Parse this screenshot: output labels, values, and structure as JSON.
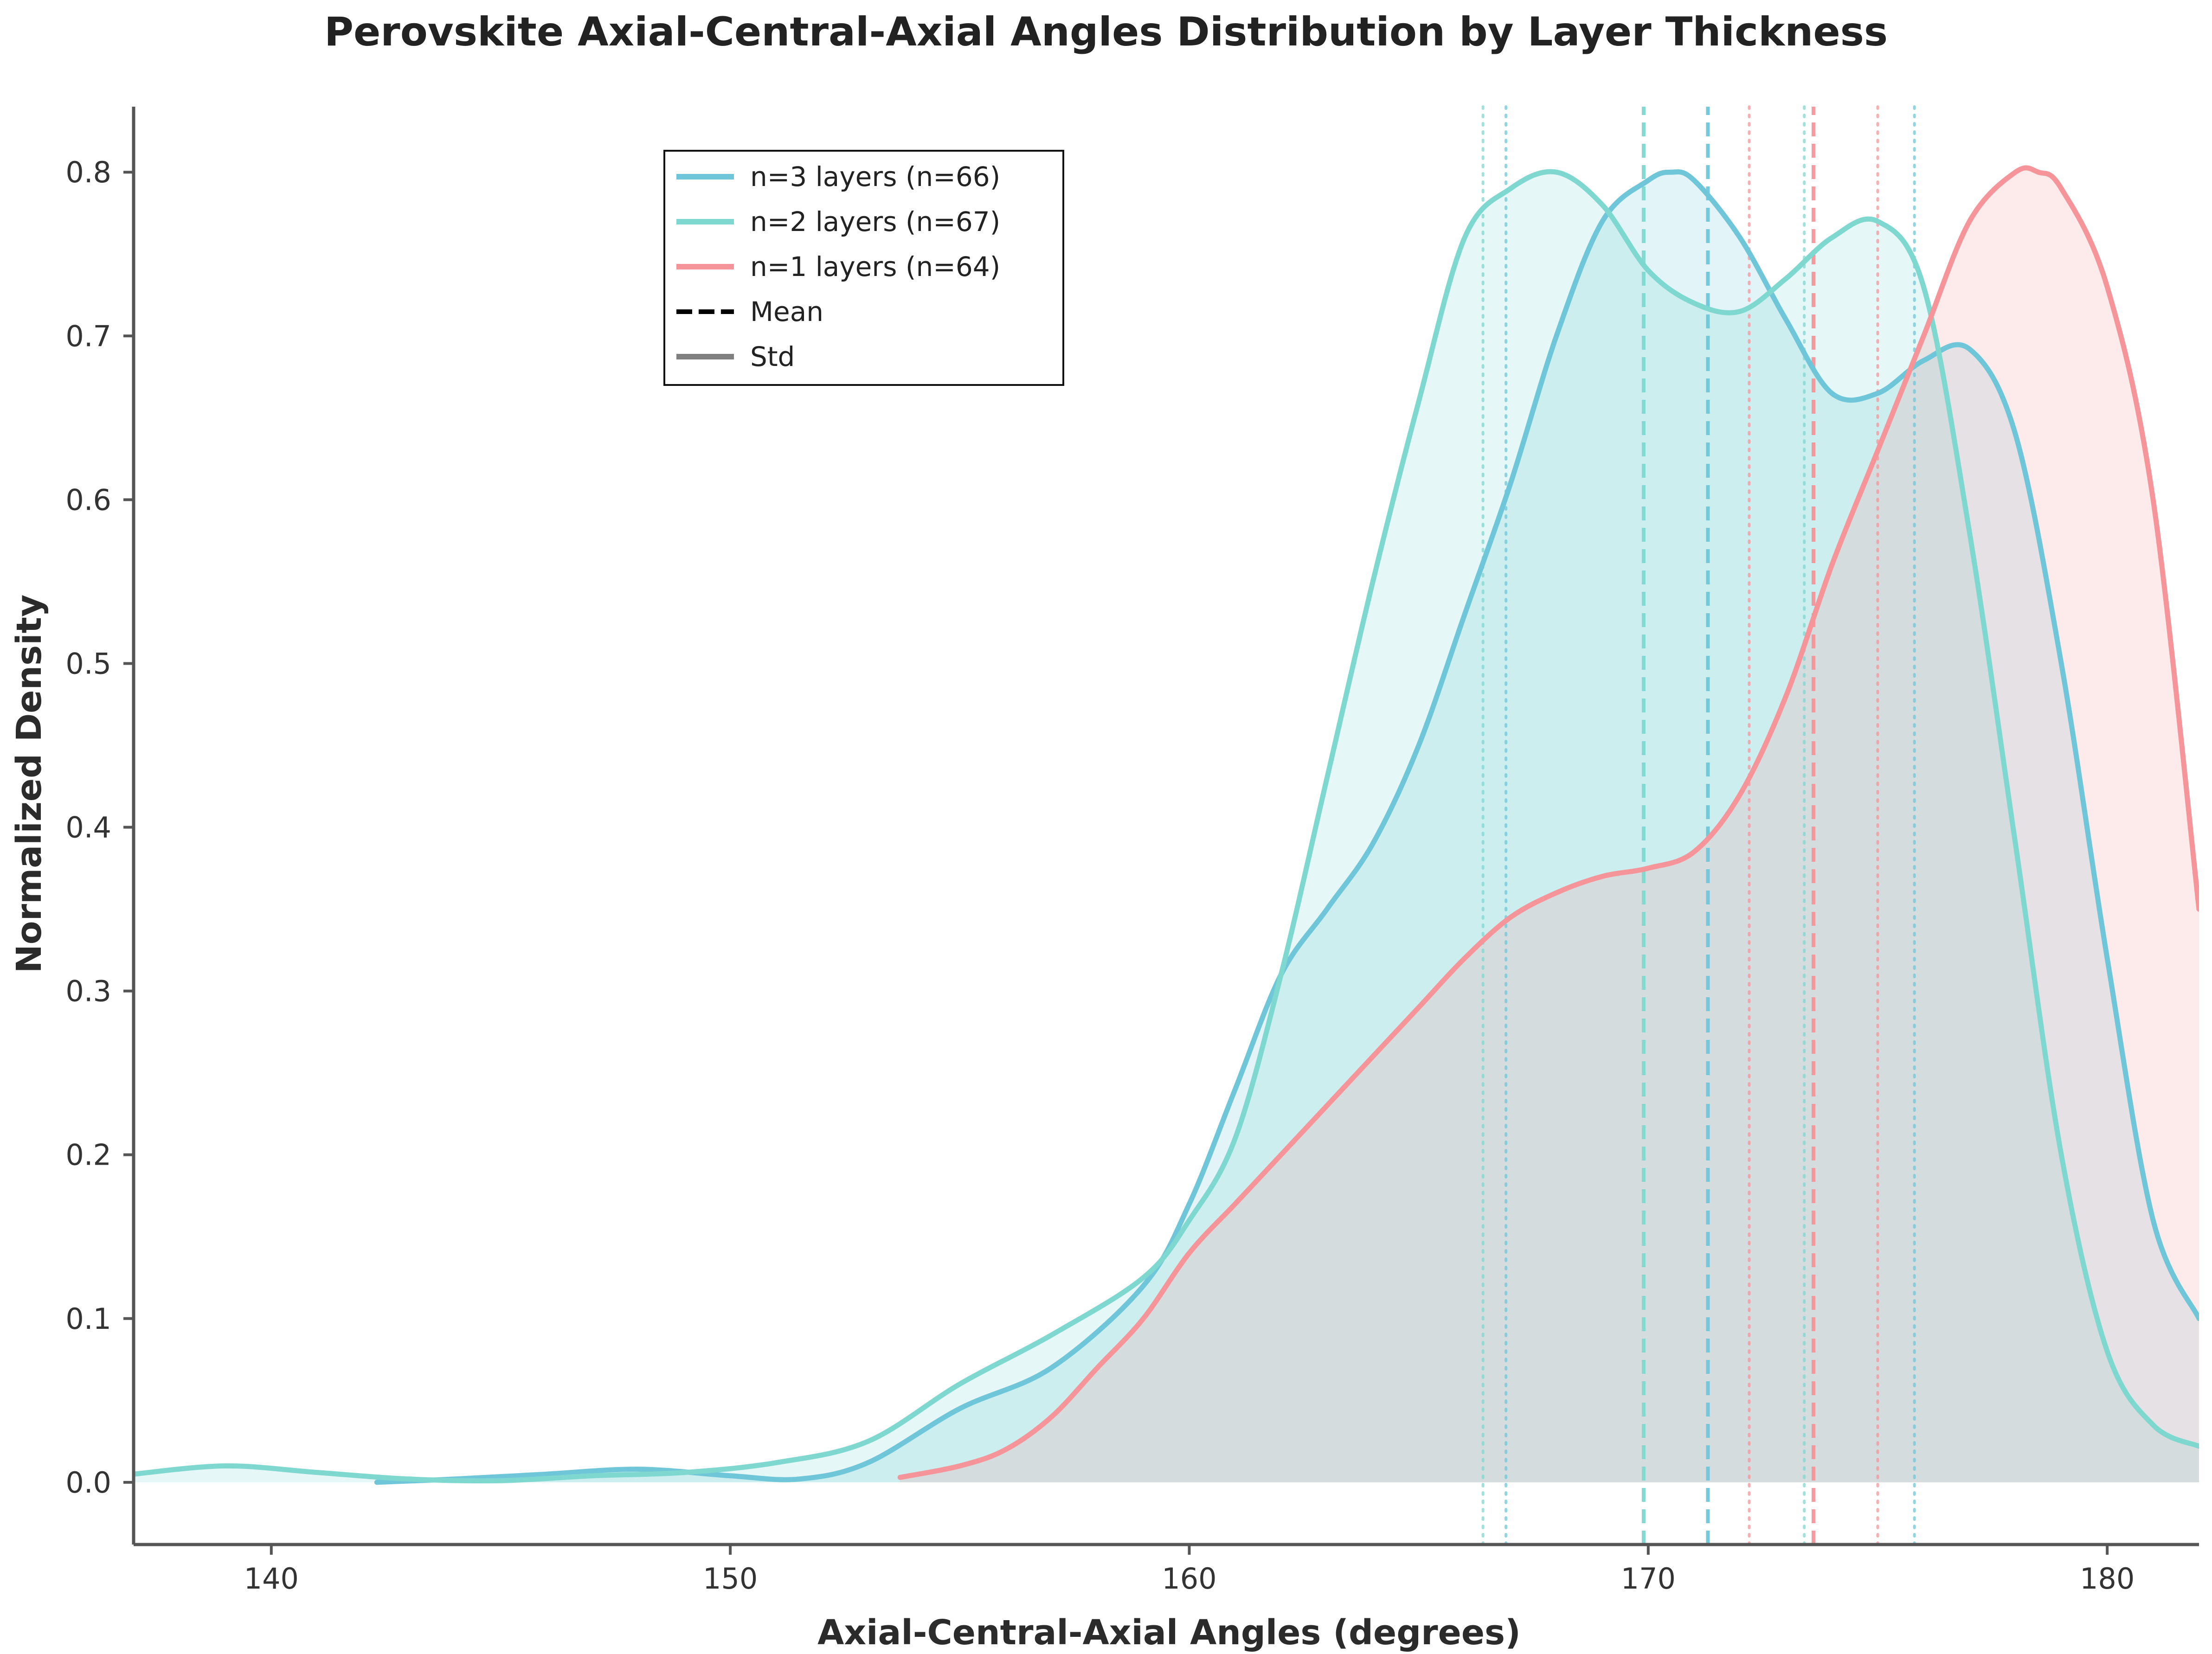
{
  "chart_data": {
    "type": "area",
    "title": "Perovskite Axial-Central-Axial Angles Distribution by Layer Thickness",
    "xlabel": "Axial-Central-Axial Angles (degrees)",
    "ylabel": "Normalized Density",
    "xlim": [
      137,
      182
    ],
    "ylim": [
      -0.038,
      0.84
    ],
    "xticks": [
      140,
      150,
      160,
      170,
      180
    ],
    "yticks": [
      0.0,
      0.1,
      0.2,
      0.3,
      0.4,
      0.5,
      0.6,
      0.7,
      0.8
    ],
    "grid": false,
    "legend_position": "upper-left",
    "series": [
      {
        "name": "n=3 layers (n=66)",
        "color": "#70c6d9",
        "fill": "#70c6d9",
        "mean": 171.3,
        "std_lines": [
          166.9,
          175.8
        ],
        "x": [
          142.3,
          144,
          146,
          148,
          150,
          151.5,
          153,
          155,
          157,
          159,
          160,
          161,
          162,
          163,
          164,
          165,
          166,
          167,
          168,
          169,
          170,
          170.5,
          171,
          172,
          173,
          174,
          175,
          176,
          177,
          178,
          179,
          180,
          181,
          182
        ],
        "y": [
          0.0,
          0.002,
          0.005,
          0.008,
          0.004,
          0.002,
          0.012,
          0.045,
          0.07,
          0.12,
          0.17,
          0.24,
          0.31,
          0.35,
          0.39,
          0.45,
          0.53,
          0.61,
          0.7,
          0.77,
          0.795,
          0.8,
          0.795,
          0.76,
          0.71,
          0.665,
          0.665,
          0.685,
          0.692,
          0.64,
          0.5,
          0.32,
          0.16,
          0.1
        ]
      },
      {
        "name": "n=2 layers (n=67)",
        "color": "#7fd8d0",
        "fill": "#7fd8d0",
        "mean": 169.9,
        "std_lines": [
          166.4,
          173.4
        ],
        "x": [
          137,
          139,
          141,
          143,
          145,
          147,
          149,
          151,
          153,
          155,
          157,
          159,
          160,
          161,
          162,
          163,
          164,
          165,
          166,
          167,
          168,
          169,
          170,
          171,
          172,
          173,
          174,
          175,
          176,
          177,
          178,
          179,
          180,
          181,
          182
        ],
        "y": [
          0.005,
          0.01,
          0.006,
          0.002,
          0.001,
          0.004,
          0.006,
          0.012,
          0.025,
          0.06,
          0.09,
          0.125,
          0.16,
          0.21,
          0.31,
          0.43,
          0.55,
          0.66,
          0.76,
          0.79,
          0.8,
          0.78,
          0.74,
          0.72,
          0.715,
          0.735,
          0.76,
          0.77,
          0.73,
          0.58,
          0.39,
          0.2,
          0.08,
          0.035,
          0.022
        ]
      },
      {
        "name": "n=1 layers (n=64)",
        "color": "#f5959a",
        "fill": "#f5959a",
        "mean": 173.6,
        "std_lines": [
          172.2,
          175.0
        ],
        "x": [
          153.7,
          155,
          156,
          157,
          158,
          159,
          160,
          161,
          162,
          163,
          164,
          165,
          166,
          167,
          168,
          169,
          170,
          171,
          172,
          173,
          174,
          175,
          176,
          177,
          178,
          178.5,
          179,
          180,
          181,
          182
        ],
        "y": [
          0.003,
          0.01,
          0.02,
          0.04,
          0.07,
          0.1,
          0.14,
          0.17,
          0.2,
          0.23,
          0.26,
          0.29,
          0.32,
          0.345,
          0.36,
          0.37,
          0.375,
          0.385,
          0.42,
          0.48,
          0.56,
          0.63,
          0.7,
          0.77,
          0.8,
          0.8,
          0.79,
          0.73,
          0.6,
          0.35
        ]
      }
    ],
    "legend": {
      "entries": [
        {
          "label": "n=3 layers (n=66)",
          "style": "solid",
          "color": "#70c6d9"
        },
        {
          "label": "n=2 layers (n=67)",
          "style": "solid",
          "color": "#7fd8d0"
        },
        {
          "label": "n=1 layers (n=64)",
          "style": "solid",
          "color": "#f5959a"
        },
        {
          "label": "Mean",
          "style": "dashed",
          "color": "#000000"
        },
        {
          "label": "Std",
          "style": "solid",
          "color": "#808080"
        }
      ]
    }
  }
}
